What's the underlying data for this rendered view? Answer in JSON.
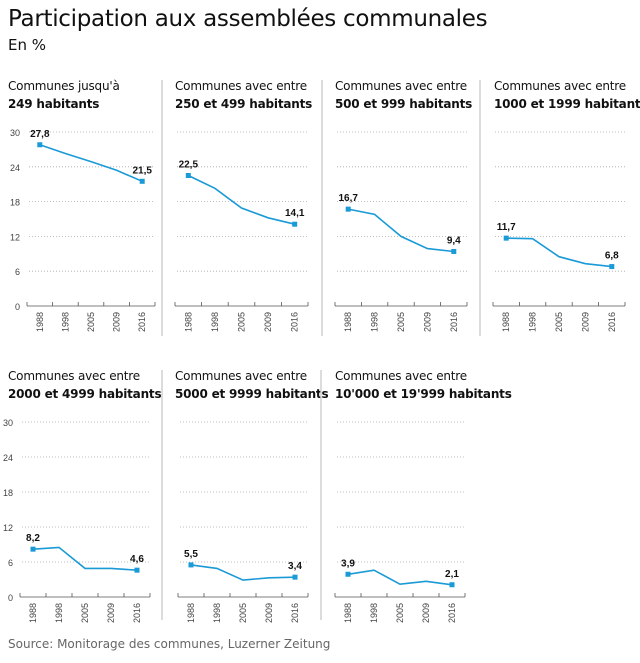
{
  "title": "Participation aux assemblées communales",
  "subtitle": "En %",
  "source": "Source: Monitorage des communes, Luzerner Zeitung",
  "chart_data": [
    {
      "type": "line",
      "title_line1": "Communes jusqu'à",
      "title_line2": "249 habitants",
      "categories": [
        "1988",
        "1998",
        "2005",
        "2009",
        "2016"
      ],
      "values": [
        27.8,
        26.3,
        24.9,
        23.4,
        21.5
      ],
      "labels": {
        "first": "27,8",
        "last": "21,5"
      },
      "ylim": [
        0,
        30
      ],
      "yticks": [
        "0",
        "6",
        "12",
        "18",
        "24",
        "30"
      ],
      "grid": true,
      "color": "#1a9ad6"
    },
    {
      "type": "line",
      "title_line1": "Communes avec entre",
      "title_line2": "250 et 499 habitants",
      "categories": [
        "1988",
        "1998",
        "2005",
        "2009",
        "2016"
      ],
      "values": [
        22.5,
        20.3,
        16.9,
        15.2,
        14.1
      ],
      "labels": {
        "first": "22,5",
        "last": "14,1"
      },
      "ylim": [
        0,
        30
      ],
      "grid": true,
      "color": "#1a9ad6"
    },
    {
      "type": "line",
      "title_line1": "Communes avec entre",
      "title_line2": "500 et 999 habitants",
      "categories": [
        "1988",
        "1998",
        "2005",
        "2009",
        "2016"
      ],
      "values": [
        16.7,
        15.8,
        12.0,
        9.9,
        9.4
      ],
      "labels": {
        "first": "16,7",
        "last": "9,4"
      },
      "ylim": [
        0,
        30
      ],
      "grid": true,
      "color": "#1a9ad6"
    },
    {
      "type": "line",
      "title_line1": "Communes avec entre",
      "title_line2": "1000 et 1999 habitants",
      "categories": [
        "1988",
        "1998",
        "2005",
        "2009",
        "2016"
      ],
      "values": [
        11.7,
        11.6,
        8.5,
        7.3,
        6.8
      ],
      "labels": {
        "first": "11,7",
        "last": "6,8"
      },
      "ylim": [
        0,
        30
      ],
      "grid": true,
      "color": "#1a9ad6"
    },
    {
      "type": "line",
      "title_line1": "Communes avec entre",
      "title_line2": "2000 et 4999 habitants",
      "categories": [
        "1988",
        "1998",
        "2005",
        "2009",
        "2016"
      ],
      "values": [
        8.2,
        8.5,
        4.9,
        4.9,
        4.6
      ],
      "labels": {
        "first": "8,2",
        "last": "4,6"
      },
      "ylim": [
        0,
        30
      ],
      "yticks": [
        "0",
        "6",
        "12",
        "18",
        "24",
        "30"
      ],
      "grid": true,
      "color": "#1a9ad6"
    },
    {
      "type": "line",
      "title_line1": "Communes avec entre",
      "title_line2": "5000 et 9999 habitants",
      "categories": [
        "1988",
        "1998",
        "2005",
        "2009",
        "2016"
      ],
      "values": [
        5.5,
        4.9,
        2.9,
        3.3,
        3.4
      ],
      "labels": {
        "first": "5,5",
        "last": "3,4"
      },
      "ylim": [
        0,
        30
      ],
      "grid": true,
      "color": "#1a9ad6"
    },
    {
      "type": "line",
      "title_line1": "Communes avec entre",
      "title_line2": "10'000 et 19'999 habitants",
      "categories": [
        "1988",
        "1998",
        "2005",
        "2009",
        "2016"
      ],
      "values": [
        3.9,
        4.6,
        2.2,
        2.7,
        2.1
      ],
      "labels": {
        "first": "3,9",
        "last": "2,1"
      },
      "ylim": [
        0,
        30
      ],
      "grid": true,
      "color": "#1a9ad6"
    }
  ]
}
